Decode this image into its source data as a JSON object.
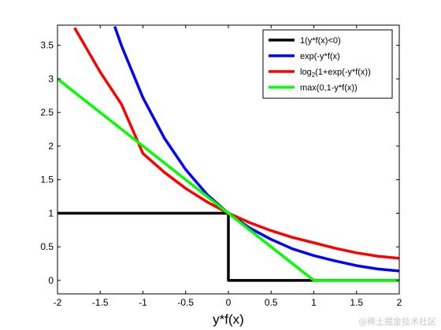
{
  "chart_data": {
    "type": "line",
    "xlabel": "y*f(x)",
    "ylabel": "",
    "xlim": [
      -2,
      2
    ],
    "ylim": [
      -0.2,
      3.8
    ],
    "xticks": [
      "-2",
      "-1.5",
      "-1",
      "-0.5",
      "0",
      "0.5",
      "1",
      "1.5",
      "2"
    ],
    "yticks": [
      "0",
      "0.5",
      "1",
      "1.5",
      "2",
      "2.5",
      "3",
      "3.5"
    ],
    "grid": false,
    "legend_position": "top-right",
    "series": [
      {
        "name": "1(y*f(x)<0)",
        "color": "#000000",
        "x": [
          -2,
          -1.5,
          -1,
          -0.5,
          0,
          0,
          0.5,
          1,
          1.5,
          2
        ],
        "y": [
          1,
          1,
          1,
          1,
          1,
          0,
          0,
          0,
          0,
          0
        ]
      },
      {
        "name": "exp(-y*f(x)",
        "color": "#0000ff",
        "x": [
          -1.33,
          -1.25,
          -1,
          -0.75,
          -0.5,
          -0.25,
          0,
          0.25,
          0.5,
          0.75,
          1,
          1.25,
          1.5,
          1.75,
          2
        ],
        "y": [
          3.78,
          3.49,
          2.72,
          2.12,
          1.65,
          1.28,
          1.0,
          0.78,
          0.61,
          0.47,
          0.37,
          0.29,
          0.22,
          0.17,
          0.14
        ]
      },
      {
        "name_prefix": "log",
        "name_subscript": "2",
        "name_suffix": "(1+exp(-y*f(x))",
        "color": "#ff0000",
        "x": [
          -1.8,
          -1.5,
          -1.25,
          -1,
          -0.75,
          -0.5,
          -0.25,
          0,
          0.25,
          0.5,
          0.75,
          1,
          1.25,
          1.5,
          1.75,
          2
        ],
        "y": [
          3.76,
          3.1,
          2.62,
          1.89,
          1.61,
          1.37,
          1.17,
          1.0,
          0.86,
          0.74,
          0.64,
          0.56,
          0.48,
          0.41,
          0.36,
          0.33
        ]
      },
      {
        "name": "max(0,1-y*f(x))",
        "color": "#00ff00",
        "x": [
          -2,
          -1,
          0,
          1,
          1.5,
          2
        ],
        "y": [
          3,
          2,
          1,
          0,
          0,
          0
        ]
      }
    ]
  },
  "watermark": "@稀土掘金技术社区"
}
